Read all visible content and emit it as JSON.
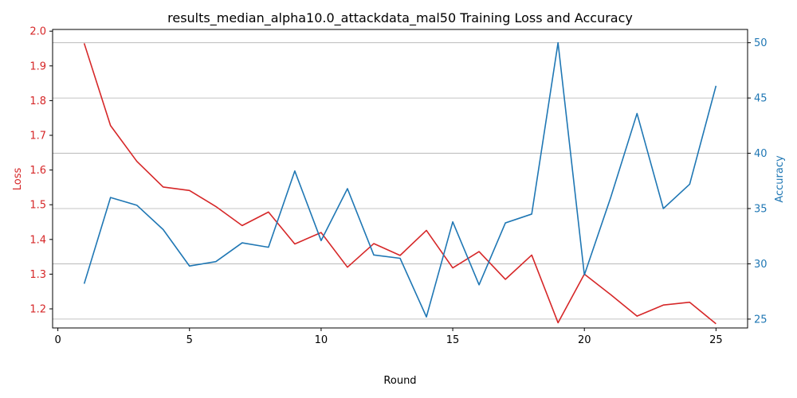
{
  "chart_data": {
    "type": "line",
    "title": "results_median_alpha10.0_attackdata_mal50 Training Loss and Accuracy",
    "xlabel": "Round",
    "ylabel_left": "Loss",
    "ylabel_right": "Accuracy",
    "x": [
      1,
      2,
      3,
      4,
      5,
      6,
      7,
      8,
      9,
      10,
      11,
      12,
      13,
      14,
      15,
      16,
      17,
      18,
      19,
      20,
      21,
      22,
      23,
      24,
      25
    ],
    "xlim": [
      -0.2,
      26.2
    ],
    "xticks": [
      0,
      5,
      10,
      15,
      20,
      25
    ],
    "ylim_left": [
      1.145,
      2.005
    ],
    "yticks_left": [
      1.2,
      1.3,
      1.4,
      1.5,
      1.6,
      1.7,
      1.8,
      1.9,
      2.0
    ],
    "ylim_right": [
      24.2,
      51.2
    ],
    "yticks_right": [
      25,
      30,
      35,
      40,
      45,
      50
    ],
    "grid": "horizontal lines at right-axis ticks",
    "series": [
      {
        "name": "Loss",
        "axis": "left",
        "color": "#d62728",
        "values": [
          1.965,
          1.728,
          1.625,
          1.551,
          1.541,
          1.495,
          1.44,
          1.479,
          1.387,
          1.42,
          1.32,
          1.388,
          1.354,
          1.426,
          1.318,
          1.365,
          1.285,
          1.355,
          1.16,
          1.3,
          1.241,
          1.179,
          1.211,
          1.219,
          1.157
        ]
      },
      {
        "name": "Accuracy",
        "axis": "right",
        "color": "#1f77b4",
        "values": [
          28.2,
          36.0,
          35.3,
          33.1,
          29.8,
          30.2,
          31.9,
          31.5,
          38.4,
          32.1,
          36.8,
          30.8,
          30.5,
          25.2,
          33.8,
          28.1,
          33.7,
          34.5,
          50.0,
          29.0,
          36.0,
          43.6,
          35.0,
          37.2,
          46.1
        ]
      }
    ],
    "left_axis_color": "#d62728",
    "right_axis_color": "#1f77b4"
  }
}
